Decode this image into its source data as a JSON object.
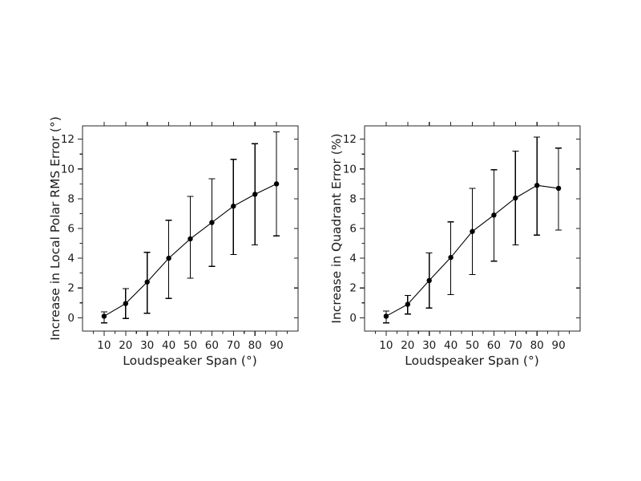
{
  "figure": {
    "background_color": "#ffffff",
    "data_color": "#000000",
    "axis_color": "#262626"
  },
  "chart_data": [
    {
      "id": "local-polar-rms-error",
      "type": "line",
      "subtype": "errorbar",
      "title": "",
      "xlabel": "Loudspeaker Span (°)",
      "ylabel": "Increase in Local Polar RMS Error (°)",
      "x": [
        10,
        20,
        30,
        40,
        50,
        60,
        70,
        80,
        90
      ],
      "y": [
        0.1,
        0.95,
        2.4,
        4.0,
        5.3,
        6.4,
        7.5,
        8.3,
        9.0
      ],
      "y_err_lower_bound": [
        -0.35,
        -0.05,
        0.3,
        1.3,
        2.65,
        3.45,
        4.25,
        4.9,
        5.5
      ],
      "y_err_upper_bound": [
        0.4,
        1.95,
        4.4,
        6.55,
        8.15,
        9.35,
        10.65,
        11.7,
        12.5
      ],
      "xticks": [
        10,
        20,
        30,
        40,
        50,
        60,
        70,
        80,
        90
      ],
      "yticks": [
        0,
        2,
        4,
        6,
        8,
        10,
        12
      ],
      "xlim": [
        0,
        100
      ],
      "ylim": [
        -0.9,
        12.9
      ],
      "grid": false,
      "legend": null,
      "marker": "filled-circle",
      "line_color": "#000000"
    },
    {
      "id": "quadrant-error",
      "type": "line",
      "subtype": "errorbar",
      "title": "",
      "xlabel": "Loudspeaker Span (°)",
      "ylabel": "Increase in Quadrant Error (%)",
      "x": [
        10,
        20,
        30,
        40,
        50,
        60,
        70,
        80,
        90
      ],
      "y": [
        0.1,
        0.9,
        2.5,
        4.05,
        5.8,
        6.9,
        8.05,
        8.9,
        8.7
      ],
      "y_err_lower_bound": [
        -0.35,
        0.25,
        0.65,
        1.55,
        2.9,
        3.8,
        4.9,
        5.55,
        5.9
      ],
      "y_err_upper_bound": [
        0.45,
        1.5,
        4.35,
        6.45,
        8.7,
        9.95,
        11.2,
        12.15,
        11.4
      ],
      "xticks": [
        10,
        20,
        30,
        40,
        50,
        60,
        70,
        80,
        90
      ],
      "yticks": [
        0,
        2,
        4,
        6,
        8,
        10,
        12
      ],
      "xlim": [
        0,
        100
      ],
      "ylim": [
        -0.9,
        12.9
      ],
      "grid": false,
      "legend": null,
      "marker": "filled-circle",
      "line_color": "#000000"
    }
  ]
}
